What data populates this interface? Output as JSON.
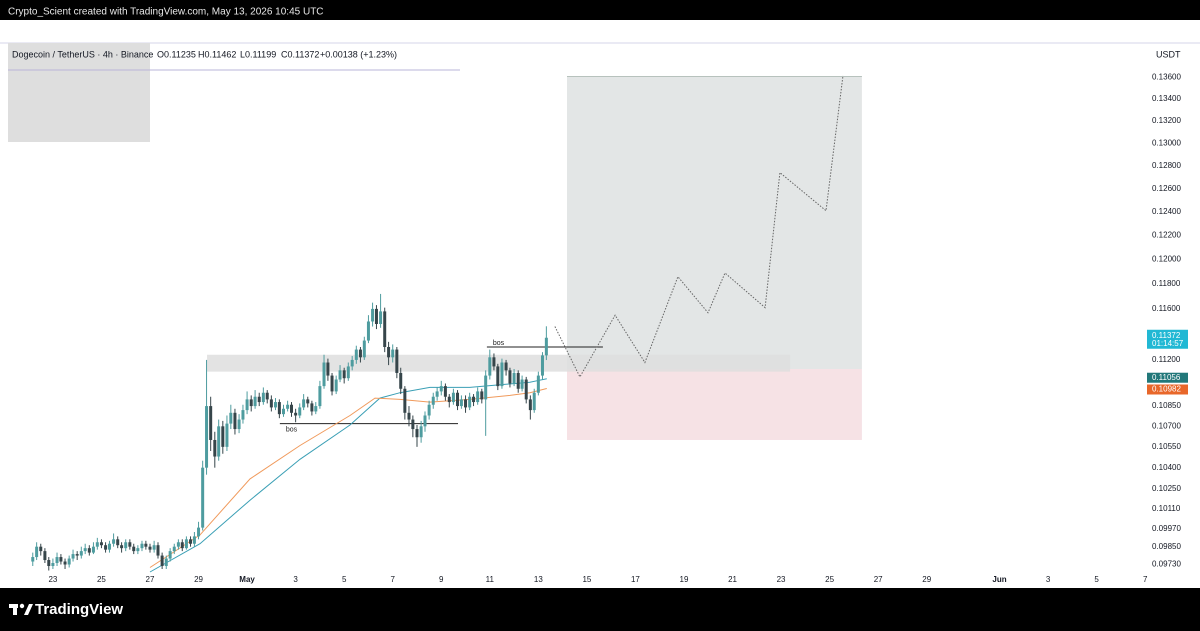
{
  "header": {
    "watermark": "Crypto_Scient created with TradingView.com, May 13, 2026 10:45 UTC",
    "footer_logo": "TradingView"
  },
  "chart_data": {
    "type": "candlestick",
    "symbol": "Dogecoin / TetherUS · 4h · Binance",
    "ohlc_legend": [
      "O0.11235",
      "H0.11462",
      "L0.11199",
      "C0.11372",
      "+0.00138 (+1.23%)"
    ],
    "currency": "USDT",
    "up_color": "#4e9c9f",
    "down_color": "#36454a",
    "log_scale": true,
    "grid": false,
    "xlim": [
      -1.85,
      46.6
    ],
    "ylim": [
      0.0968,
      0.1413
    ],
    "xticks": [
      {
        "value": 0,
        "label": "23"
      },
      {
        "value": 2,
        "label": "25"
      },
      {
        "value": 4,
        "label": "27"
      },
      {
        "value": 6,
        "label": "29"
      },
      {
        "value": 8,
        "label": "May"
      },
      {
        "value": 10,
        "label": "3"
      },
      {
        "value": 12,
        "label": "5"
      },
      {
        "value": 14,
        "label": "7"
      },
      {
        "value": 16,
        "label": "9"
      },
      {
        "value": 18,
        "label": "11"
      },
      {
        "value": 20,
        "label": "13"
      },
      {
        "value": 22,
        "label": "15"
      },
      {
        "value": 24,
        "label": "17"
      },
      {
        "value": 26,
        "label": "19"
      },
      {
        "value": 28,
        "label": "21"
      },
      {
        "value": 30,
        "label": "23"
      },
      {
        "value": 32,
        "label": "25"
      },
      {
        "value": 34,
        "label": "27"
      },
      {
        "value": 36,
        "label": "29"
      },
      {
        "value": 39,
        "label": "Jun"
      },
      {
        "value": 41,
        "label": "3"
      },
      {
        "value": 43,
        "label": "5"
      },
      {
        "value": 45,
        "label": "7"
      }
    ],
    "yticks": [
      {
        "value": 0.136,
        "label": "0.13600"
      },
      {
        "value": 0.134,
        "label": "0.13400"
      },
      {
        "value": 0.132,
        "label": "0.13200"
      },
      {
        "value": 0.13,
        "label": "0.13000"
      },
      {
        "value": 0.128,
        "label": "0.12800"
      },
      {
        "value": 0.126,
        "label": "0.12600"
      },
      {
        "value": 0.124,
        "label": "0.12400"
      },
      {
        "value": 0.122,
        "label": "0.12200"
      },
      {
        "value": 0.12,
        "label": "0.12000"
      },
      {
        "value": 0.118,
        "label": "0.11800"
      },
      {
        "value": 0.116,
        "label": "0.11600"
      },
      {
        "value": 0.112,
        "label": "0.11200"
      },
      {
        "value": 0.1085,
        "label": "0.10850"
      },
      {
        "value": 0.107,
        "label": "0.10700"
      },
      {
        "value": 0.1055,
        "label": "0.10550"
      },
      {
        "value": 0.104,
        "label": "0.10400"
      },
      {
        "value": 0.1025,
        "label": "0.10250"
      },
      {
        "value": 0.1011,
        "label": "0.10110"
      },
      {
        "value": 0.0997,
        "label": "0.09970"
      },
      {
        "value": 0.0985,
        "label": "0.09850"
      },
      {
        "value": 0.0973,
        "label": "0.09730"
      }
    ],
    "x": [
      -0.83,
      -0.67,
      -0.5,
      -0.33,
      -0.17,
      0,
      0.17,
      0.33,
      0.5,
      0.67,
      0.83,
      1,
      1.17,
      1.33,
      1.5,
      1.67,
      1.83,
      2,
      2.17,
      2.33,
      2.5,
      2.67,
      2.83,
      3,
      3.17,
      3.33,
      3.5,
      3.67,
      3.83,
      4,
      4.17,
      4.33,
      4.5,
      4.67,
      4.83,
      5,
      5.17,
      5.33,
      5.5,
      5.67,
      5.83,
      6,
      6.17,
      6.33,
      6.5,
      6.67,
      6.83,
      7,
      7.17,
      7.33,
      7.5,
      7.67,
      7.83,
      8,
      8.17,
      8.33,
      8.5,
      8.67,
      8.83,
      9,
      9.17,
      9.33,
      9.5,
      9.67,
      9.83,
      10,
      10.17,
      10.33,
      10.5,
      10.67,
      10.83,
      11,
      11.17,
      11.33,
      11.5,
      11.67,
      11.83,
      12,
      12.17,
      12.33,
      12.5,
      12.67,
      12.83,
      13,
      13.17,
      13.33,
      13.5,
      13.67,
      13.83,
      14,
      14.17,
      14.33,
      14.5,
      14.67,
      14.83,
      15,
      15.17,
      15.33,
      15.5,
      15.67,
      15.83,
      16,
      16.17,
      16.33,
      16.5,
      16.67,
      16.83,
      17,
      17.17,
      17.33,
      17.5,
      17.67,
      17.83,
      18,
      18.17,
      18.33,
      18.5,
      18.67,
      18.83,
      19,
      19.17,
      19.33,
      19.5,
      19.67,
      19.83,
      20,
      20.17,
      20.33
    ],
    "ohlc": [
      [
        0.0975,
        0.0981,
        0.0972,
        0.0978
      ],
      [
        0.0978,
        0.0988,
        0.0976,
        0.0985
      ],
      [
        0.0985,
        0.0987,
        0.0979,
        0.0982
      ],
      [
        0.0982,
        0.0984,
        0.0974,
        0.0976
      ],
      [
        0.0976,
        0.0978,
        0.0969,
        0.0972
      ],
      [
        0.0972,
        0.0977,
        0.097,
        0.0974
      ],
      [
        0.0974,
        0.0981,
        0.0972,
        0.0978
      ],
      [
        0.0978,
        0.098,
        0.0973,
        0.0975
      ],
      [
        0.0975,
        0.0977,
        0.097,
        0.0973
      ],
      [
        0.0973,
        0.0979,
        0.0971,
        0.0977
      ],
      [
        0.0977,
        0.0983,
        0.0975,
        0.098
      ],
      [
        0.098,
        0.0982,
        0.0976,
        0.0979
      ],
      [
        0.0979,
        0.0985,
        0.0977,
        0.0982
      ],
      [
        0.0982,
        0.0987,
        0.098,
        0.0984
      ],
      [
        0.0984,
        0.0986,
        0.0979,
        0.0981
      ],
      [
        0.0981,
        0.0988,
        0.098,
        0.0985
      ],
      [
        0.0985,
        0.0991,
        0.0983,
        0.0988
      ],
      [
        0.0988,
        0.099,
        0.0984,
        0.0986
      ],
      [
        0.0986,
        0.0988,
        0.0981,
        0.0983
      ],
      [
        0.0983,
        0.0989,
        0.0981,
        0.0987
      ],
      [
        0.0987,
        0.0994,
        0.0985,
        0.099
      ],
      [
        0.099,
        0.0992,
        0.0984,
        0.0986
      ],
      [
        0.0986,
        0.0988,
        0.0981,
        0.0984
      ],
      [
        0.0984,
        0.099,
        0.0982,
        0.0988
      ],
      [
        0.0988,
        0.099,
        0.0983,
        0.0985
      ],
      [
        0.0985,
        0.0987,
        0.098,
        0.0982
      ],
      [
        0.0982,
        0.0986,
        0.098,
        0.0984
      ],
      [
        0.0984,
        0.0989,
        0.0982,
        0.0987
      ],
      [
        0.0987,
        0.0989,
        0.0983,
        0.0985
      ],
      [
        0.0985,
        0.0987,
        0.0981,
        0.0983
      ],
      [
        0.0983,
        0.0989,
        0.0981,
        0.0986
      ],
      [
        0.0986,
        0.0988,
        0.0977,
        0.0979
      ],
      [
        0.0979,
        0.0981,
        0.097,
        0.0972
      ],
      [
        0.0972,
        0.0979,
        0.097,
        0.0977
      ],
      [
        0.0977,
        0.0984,
        0.0975,
        0.0982
      ],
      [
        0.0982,
        0.0987,
        0.098,
        0.0985
      ],
      [
        0.0985,
        0.099,
        0.0983,
        0.0988
      ],
      [
        0.0988,
        0.099,
        0.0982,
        0.0984
      ],
      [
        0.0984,
        0.0992,
        0.0983,
        0.099
      ],
      [
        0.099,
        0.0992,
        0.0985,
        0.0987
      ],
      [
        0.0987,
        0.0995,
        0.0985,
        0.0992
      ],
      [
        0.0992,
        0.1002,
        0.099,
        0.0998
      ],
      [
        0.0998,
        0.1045,
        0.0996,
        0.104
      ],
      [
        0.104,
        0.112,
        0.1035,
        0.1085
      ],
      [
        0.1085,
        0.1092,
        0.1052,
        0.106
      ],
      [
        0.106,
        0.1066,
        0.104,
        0.1048
      ],
      [
        0.1048,
        0.1075,
        0.1045,
        0.107
      ],
      [
        0.107,
        0.1074,
        0.105,
        0.1055
      ],
      [
        0.1055,
        0.1078,
        0.1052,
        0.1072
      ],
      [
        0.1072,
        0.1086,
        0.1068,
        0.108
      ],
      [
        0.108,
        0.1083,
        0.1064,
        0.1068
      ],
      [
        0.1068,
        0.1079,
        0.1065,
        0.1075
      ],
      [
        0.1075,
        0.1086,
        0.1072,
        0.1082
      ],
      [
        0.1082,
        0.1096,
        0.1079,
        0.109
      ],
      [
        0.109,
        0.1093,
        0.1081,
        0.1085
      ],
      [
        0.1085,
        0.1097,
        0.1083,
        0.1092
      ],
      [
        0.1092,
        0.1095,
        0.1085,
        0.1088
      ],
      [
        0.1088,
        0.1099,
        0.1086,
        0.1095
      ],
      [
        0.1095,
        0.1097,
        0.1087,
        0.109
      ],
      [
        0.109,
        0.1093,
        0.1081,
        0.1084
      ],
      [
        0.1084,
        0.1091,
        0.1082,
        0.1088
      ],
      [
        0.1088,
        0.109,
        0.1076,
        0.1079
      ],
      [
        0.1079,
        0.1086,
        0.1077,
        0.1083
      ],
      [
        0.1083,
        0.1089,
        0.1081,
        0.1086
      ],
      [
        0.1086,
        0.1088,
        0.1077,
        0.108
      ],
      [
        0.108,
        0.1083,
        0.1073,
        0.1078
      ],
      [
        0.1078,
        0.1087,
        0.1076,
        0.1084
      ],
      [
        0.1084,
        0.1094,
        0.1082,
        0.109
      ],
      [
        0.109,
        0.1092,
        0.1084,
        0.1087
      ],
      [
        0.1087,
        0.1089,
        0.1078,
        0.1081
      ],
      [
        0.1081,
        0.1088,
        0.1079,
        0.1085
      ],
      [
        0.1085,
        0.1104,
        0.1083,
        0.11
      ],
      [
        0.11,
        0.1124,
        0.1098,
        0.1118
      ],
      [
        0.1118,
        0.1121,
        0.1104,
        0.1108
      ],
      [
        0.1108,
        0.111,
        0.1093,
        0.1096
      ],
      [
        0.1096,
        0.1108,
        0.1094,
        0.1105
      ],
      [
        0.1105,
        0.1116,
        0.1103,
        0.1112
      ],
      [
        0.1112,
        0.1114,
        0.1102,
        0.1106
      ],
      [
        0.1106,
        0.1118,
        0.1104,
        0.1115
      ],
      [
        0.1115,
        0.1123,
        0.1112,
        0.112
      ],
      [
        0.112,
        0.1131,
        0.1117,
        0.1128
      ],
      [
        0.1128,
        0.113,
        0.1118,
        0.1122
      ],
      [
        0.1122,
        0.1138,
        0.112,
        0.1135
      ],
      [
        0.1135,
        0.1155,
        0.1133,
        0.115
      ],
      [
        0.115,
        0.1165,
        0.1146,
        0.116
      ],
      [
        0.116,
        0.1163,
        0.1144,
        0.1148
      ],
      [
        0.1148,
        0.1172,
        0.1145,
        0.1158
      ],
      [
        0.1158,
        0.1161,
        0.1126,
        0.113
      ],
      [
        0.113,
        0.1134,
        0.1116,
        0.1122
      ],
      [
        0.1122,
        0.1132,
        0.1118,
        0.1128
      ],
      [
        0.1128,
        0.113,
        0.1106,
        0.111
      ],
      [
        0.111,
        0.1114,
        0.1094,
        0.1098
      ],
      [
        0.1098,
        0.11,
        0.1075,
        0.108
      ],
      [
        0.108,
        0.1085,
        0.107,
        0.1075
      ],
      [
        0.1075,
        0.1078,
        0.1062,
        0.1068
      ],
      [
        0.1068,
        0.1071,
        0.1055,
        0.1062
      ],
      [
        0.1062,
        0.1074,
        0.1058,
        0.107
      ],
      [
        0.107,
        0.1081,
        0.1066,
        0.1078
      ],
      [
        0.1078,
        0.1089,
        0.1075,
        0.1086
      ],
      [
        0.1086,
        0.1095,
        0.1083,
        0.1092
      ],
      [
        0.1092,
        0.1099,
        0.1089,
        0.1096
      ],
      [
        0.1096,
        0.1104,
        0.1093,
        0.11
      ],
      [
        0.11,
        0.1102,
        0.1089,
        0.1092
      ],
      [
        0.1092,
        0.1094,
        0.1084,
        0.1088
      ],
      [
        0.1088,
        0.1098,
        0.1086,
        0.1095
      ],
      [
        0.1095,
        0.1097,
        0.1082,
        0.1085
      ],
      [
        0.1085,
        0.1093,
        0.1083,
        0.109
      ],
      [
        0.109,
        0.1093,
        0.108,
        0.1084
      ],
      [
        0.1084,
        0.1095,
        0.1082,
        0.1092
      ],
      [
        0.1092,
        0.1094,
        0.1085,
        0.1088
      ],
      [
        0.1088,
        0.1099,
        0.1086,
        0.1096
      ],
      [
        0.1096,
        0.1098,
        0.1087,
        0.109
      ],
      [
        0.109,
        0.1112,
        0.1063,
        0.1108
      ],
      [
        0.1108,
        0.1128,
        0.1105,
        0.1122
      ],
      [
        0.1122,
        0.1125,
        0.1112,
        0.1115
      ],
      [
        0.1115,
        0.1117,
        0.1097,
        0.11
      ],
      [
        0.11,
        0.1121,
        0.1098,
        0.1118
      ],
      [
        0.1118,
        0.112,
        0.1108,
        0.1112
      ],
      [
        0.1112,
        0.1114,
        0.1099,
        0.1102
      ],
      [
        0.1102,
        0.1113,
        0.11,
        0.111
      ],
      [
        0.111,
        0.1112,
        0.1095,
        0.1098
      ],
      [
        0.1098,
        0.1108,
        0.1096,
        0.1105
      ],
      [
        0.1105,
        0.1107,
        0.1087,
        0.109
      ],
      [
        0.109,
        0.1093,
        0.1075,
        0.1082
      ],
      [
        0.1082,
        0.1098,
        0.108,
        0.1095
      ],
      [
        0.1095,
        0.1111,
        0.1093,
        0.1108
      ],
      [
        0.1108,
        0.1126,
        0.1105,
        0.11235
      ],
      [
        0.11235,
        0.11462,
        0.11199,
        0.11372
      ]
    ],
    "moving_averages": [
      {
        "color": "#3a9fb5",
        "tag_color": "#22787a",
        "x": [
          4.0,
          6.06,
          8.12,
          10.18,
          12.24,
          13.47,
          14.3,
          15.53,
          17.18,
          18.42,
          19.65,
          20.35
        ],
        "values": [
          0.0968,
          0.0987,
          0.1017,
          0.1046,
          0.1071,
          0.1091,
          0.1095,
          0.1099,
          0.1099,
          0.1101,
          0.1103,
          0.11056
        ]
      },
      {
        "color": "#f09a5c",
        "tag_color": "#e8672a",
        "x": [
          4.0,
          6.06,
          8.12,
          10.18,
          12.24,
          13.27,
          14.3,
          15.53,
          17.18,
          18.83,
          19.65,
          20.35
        ],
        "values": [
          0.0971,
          0.0993,
          0.1032,
          0.1056,
          0.1078,
          0.1091,
          0.109,
          0.1088,
          0.109,
          0.1093,
          0.1095,
          0.10982
        ]
      }
    ],
    "price_tag_color": "#21b8d4",
    "countdown": "01:14:57",
    "zone": {
      "x": [
        6.35,
        30.37
      ],
      "y": [
        0.1111,
        0.1124
      ],
      "color": "#dedede"
    },
    "bos_lines": [
      {
        "label": "bos",
        "x": [
          9.35,
          16.69
        ],
        "price": 0.1072
      },
      {
        "label": "bos",
        "x": [
          17.88,
          22.66
        ],
        "price": 0.113
      }
    ],
    "long_position": {
      "x": [
        21.18,
        33.33
      ],
      "entry": 0.1113,
      "target": 0.1361,
      "stop": 0.106,
      "target_color": "#e3e6e6",
      "stop_color": "#f6e2e5"
    },
    "projection": {
      "x": [
        20.68,
        21.71,
        23.16,
        24.39,
        25.75,
        26.99,
        27.69,
        29.34,
        29.95,
        31.85,
        32.55
      ],
      "values": [
        0.1146,
        0.1107,
        0.1155,
        0.1118,
        0.1186,
        0.1157,
        0.1189,
        0.1161,
        0.1274,
        0.1241,
        0.1362
      ]
    }
  }
}
